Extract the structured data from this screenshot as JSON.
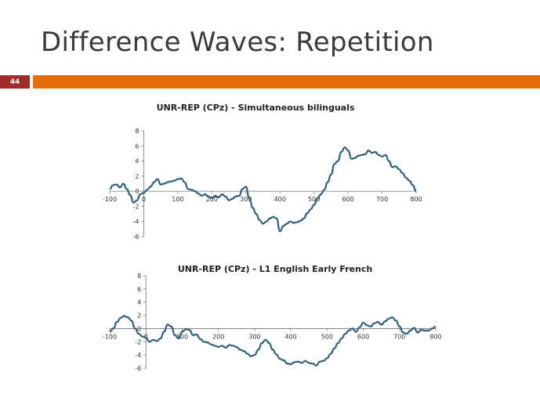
{
  "slide": {
    "title": "Difference Waves: Repetition",
    "number": "44",
    "colors": {
      "accent": "#e46c0a",
      "number_badge": "#a02b2b",
      "series": "#2e5f7e"
    }
  },
  "chart_data": [
    {
      "type": "line",
      "title": "UNR-REP (CPz) - Simultaneous bilinguals",
      "xlabel": "",
      "ylabel": "",
      "xlim": [
        -100,
        800
      ],
      "ylim": [
        -6,
        8
      ],
      "x_ticks": [
        -100,
        0,
        100,
        200,
        300,
        400,
        500,
        600,
        700,
        800
      ],
      "y_ticks": [
        8,
        6,
        4,
        2,
        0,
        -2,
        -4,
        -6
      ],
      "grid": false,
      "series": [
        {
          "x": [
            -100,
            -90,
            -80,
            -70,
            -60,
            -50,
            -40,
            -30,
            -20,
            -10,
            0,
            10,
            20,
            30,
            40,
            50,
            60,
            70,
            80,
            90,
            100,
            110,
            120,
            130,
            140,
            150,
            160,
            170,
            180,
            190,
            200,
            210,
            220,
            230,
            240,
            250,
            260,
            270,
            280,
            290,
            300,
            310,
            320,
            330,
            340,
            350,
            360,
            370,
            380,
            390,
            400,
            410,
            420,
            430,
            440,
            450,
            460,
            470,
            480,
            490,
            500,
            510,
            520,
            530,
            540,
            550,
            560,
            570,
            580,
            590,
            600,
            610,
            620,
            630,
            640,
            650,
            660,
            670,
            680,
            690,
            700,
            710,
            720,
            730,
            740,
            750,
            760,
            770,
            780,
            790,
            800
          ],
          "y": [
            0.3,
            0.8,
            0.9,
            0.5,
            1.0,
            0.3,
            -0.5,
            -1.5,
            -1.2,
            -0.4,
            -0.2,
            0.2,
            0.6,
            1.2,
            1.6,
            0.9,
            1.0,
            1.2,
            1.3,
            1.4,
            1.6,
            1.7,
            1.2,
            0.3,
            0.2,
            0.0,
            -0.3,
            -0.6,
            -0.4,
            -0.7,
            -0.9,
            -0.6,
            -0.8,
            -0.4,
            -0.7,
            -1.2,
            -1.0,
            -0.7,
            -0.6,
            0.3,
            0.6,
            -0.9,
            -2.2,
            -3.0,
            -3.8,
            -4.3,
            -4.0,
            -3.6,
            -3.4,
            -3.6,
            -5.3,
            -4.6,
            -4.3,
            -4.0,
            -4.2,
            -4.1,
            -3.9,
            -3.6,
            -2.9,
            -2.4,
            -1.8,
            -1.0,
            -0.4,
            0.2,
            1.2,
            2.2,
            3.6,
            4.0,
            5.2,
            5.8,
            5.4,
            4.3,
            4.4,
            4.7,
            4.8,
            4.9,
            5.4,
            5.1,
            5.2,
            4.8,
            4.6,
            4.8,
            4.0,
            3.2,
            3.3,
            2.9,
            2.4,
            1.8,
            1.4,
            0.8,
            0.0
          ]
        }
      ]
    },
    {
      "type": "line",
      "title": "UNR-REP (CPz) - L1 English Early French",
      "xlabel": "",
      "ylabel": "",
      "xlim": [
        -100,
        800
      ],
      "ylim": [
        -6,
        8
      ],
      "x_ticks": [
        -100,
        0,
        100,
        200,
        300,
        400,
        500,
        600,
        700,
        800
      ],
      "y_ticks": [
        8,
        6,
        4,
        2,
        0,
        -2,
        -4,
        -6
      ],
      "grid": false,
      "series": [
        {
          "x": [
            -100,
            -90,
            -80,
            -70,
            -60,
            -50,
            -40,
            -30,
            -20,
            -10,
            0,
            10,
            20,
            30,
            40,
            50,
            60,
            70,
            80,
            90,
            100,
            110,
            120,
            130,
            140,
            150,
            160,
            170,
            180,
            190,
            200,
            210,
            220,
            230,
            240,
            250,
            260,
            270,
            280,
            290,
            300,
            310,
            320,
            330,
            340,
            350,
            360,
            370,
            380,
            390,
            400,
            410,
            420,
            430,
            440,
            450,
            460,
            470,
            480,
            490,
            500,
            510,
            520,
            530,
            540,
            550,
            560,
            570,
            580,
            590,
            600,
            610,
            620,
            630,
            640,
            650,
            660,
            670,
            680,
            690,
            700,
            710,
            720,
            730,
            740,
            750,
            760,
            770,
            780,
            790,
            800
          ],
          "y": [
            -0.5,
            0.0,
            1.0,
            1.6,
            1.9,
            1.7,
            1.2,
            0.0,
            -0.8,
            -1.2,
            -1.4,
            -2.0,
            -1.7,
            -1.9,
            -1.5,
            -0.5,
            0.6,
            0.3,
            -1.0,
            -1.5,
            -0.5,
            -0.1,
            -0.2,
            -1.0,
            -0.9,
            -1.6,
            -2.0,
            -2.1,
            -2.4,
            -2.6,
            -2.8,
            -2.6,
            -2.9,
            -2.5,
            -2.6,
            -2.8,
            -3.2,
            -3.4,
            -3.8,
            -4.2,
            -4.0,
            -3.2,
            -2.2,
            -1.7,
            -2.2,
            -3.2,
            -3.9,
            -4.6,
            -4.8,
            -5.3,
            -5.4,
            -5.1,
            -5.0,
            -5.2,
            -4.9,
            -5.2,
            -5.3,
            -5.6,
            -5.0,
            -4.9,
            -4.5,
            -3.8,
            -3.0,
            -2.2,
            -1.5,
            -0.8,
            -0.3,
            0.0,
            -0.5,
            0.2,
            0.9,
            0.5,
            0.3,
            0.8,
            1.0,
            0.6,
            1.1,
            1.5,
            1.7,
            1.2,
            0.3,
            -0.6,
            -0.8,
            -0.3,
            0.1,
            -0.6,
            -0.2,
            -0.3,
            -0.3,
            0.0,
            0.3
          ]
        }
      ]
    }
  ]
}
